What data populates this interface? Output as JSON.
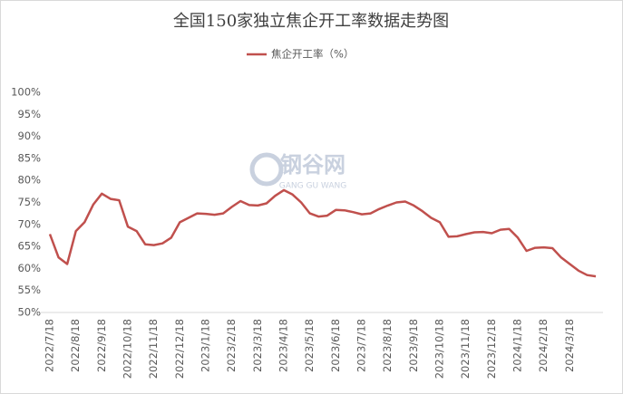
{
  "chart_data": {
    "type": "line",
    "title": "全国150家独立焦企开工率数据走势图",
    "watermark": [
      "钢谷网",
      "GANG GU WANG"
    ],
    "categories": [
      "2022/7/18",
      null,
      null,
      "2022/8/18",
      null,
      null,
      "2022/9/18",
      null,
      null,
      "2022/10/18",
      null,
      null,
      "2022/11/18",
      null,
      null,
      "2022/12/18",
      null,
      null,
      "2023/1/18",
      null,
      null,
      "2023/2/18",
      null,
      null,
      "2023/3/18",
      null,
      null,
      "2023/4/18",
      null,
      null,
      "2023/5/18",
      null,
      null,
      "2023/6/18",
      null,
      null,
      "2023/7/18",
      null,
      null,
      "2023/8/18",
      null,
      null,
      "2023/9/18",
      null,
      null,
      "2023/10/18",
      null,
      null,
      "2023/11/18",
      null,
      null,
      "2023/12/18",
      null,
      null,
      "2024/1/18",
      null,
      null,
      "2024/2/18",
      null,
      null,
      "2024/3/18",
      null,
      null,
      null
    ],
    "series": [
      {
        "name": "焦企开工率（%）",
        "color": "#c0504d",
        "values": [
          67.8,
          62.5,
          61,
          68.5,
          70.5,
          74.5,
          77,
          75.8,
          75.5,
          69.5,
          68.5,
          65.5,
          65.3,
          65.7,
          67,
          70.5,
          71.5,
          72.5,
          72.4,
          72.2,
          72.5,
          74,
          75.3,
          74.4,
          74.3,
          74.8,
          76.5,
          77.8,
          76.8,
          75,
          72.5,
          71.8,
          72,
          73.3,
          73.2,
          72.8,
          72.3,
          72.5,
          73.5,
          74.3,
          75,
          75.2,
          74.3,
          73,
          71.5,
          70.5,
          67.2,
          67.3,
          67.8,
          68.2,
          68.3,
          68,
          68.8,
          69,
          67,
          64,
          64.7,
          64.8,
          64.6,
          62.5,
          61,
          59.5,
          58.5,
          58.2
        ]
      }
    ],
    "ylim": [
      50,
      100
    ],
    "yticks": [
      {
        "value": 50,
        "label": "50%"
      },
      {
        "value": 55,
        "label": "55%"
      },
      {
        "value": 60,
        "label": "60%"
      },
      {
        "value": 65,
        "label": "65%"
      },
      {
        "value": 70,
        "label": "70%"
      },
      {
        "value": 75,
        "label": "75%"
      },
      {
        "value": 80,
        "label": "80%"
      },
      {
        "value": 85,
        "label": "85%"
      },
      {
        "value": 90,
        "label": "90%"
      },
      {
        "value": 95,
        "label": "95%"
      },
      {
        "value": 100,
        "label": "100%"
      }
    ],
    "grid": false,
    "legend": "top"
  }
}
